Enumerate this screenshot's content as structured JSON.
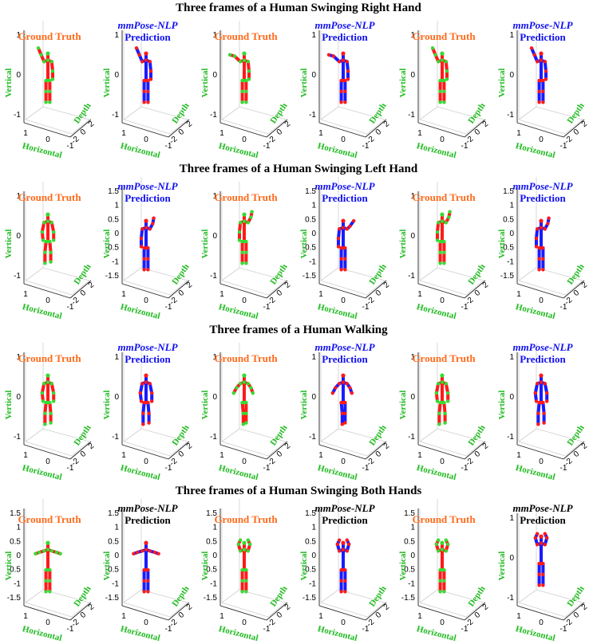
{
  "labels": {
    "ground_truth": "Ground Truth",
    "model": "mmPose-NLP",
    "prediction": "Prediction",
    "x_axis": "Horizontal",
    "y_axis": "Depth",
    "z_axis": "Vertical"
  },
  "colors": {
    "gt_bone": "#ff1a1a",
    "gt_joint": "#33dd33",
    "pred_bone": "#1a1aff",
    "pred_joint": "#ff1a1a"
  },
  "ticks": {
    "x": [
      "1",
      "0",
      "-1"
    ],
    "y": [
      "-2",
      "0",
      "2"
    ],
    "z_short": [
      "1",
      "0",
      "-1"
    ],
    "z_long": [
      "1.5",
      "1",
      "0.5",
      "0",
      "-0.5",
      "-1",
      "-1.5"
    ]
  },
  "sections": [
    {
      "title": "Three frames of a Human Swinging Right Hand",
      "pred_title_color": "blue",
      "z_mode": [
        "short",
        "short",
        "short",
        "short",
        "short",
        "short"
      ]
    },
    {
      "title": "Three frames of a Human Swinging Left Hand",
      "pred_title_color": "blue",
      "z_mode": [
        "short",
        "long",
        "short",
        "long",
        "short",
        "long"
      ]
    },
    {
      "title": "Three frames of a Human Walking",
      "pred_title_color": "blue",
      "z_mode": [
        "short",
        "short",
        "short",
        "short",
        "short",
        "short"
      ]
    },
    {
      "title": "Three frames of a Human Swinging Both Hands",
      "pred_title_color": "black",
      "z_mode": [
        "long",
        "long",
        "long",
        "long",
        "long",
        "short"
      ]
    }
  ]
}
